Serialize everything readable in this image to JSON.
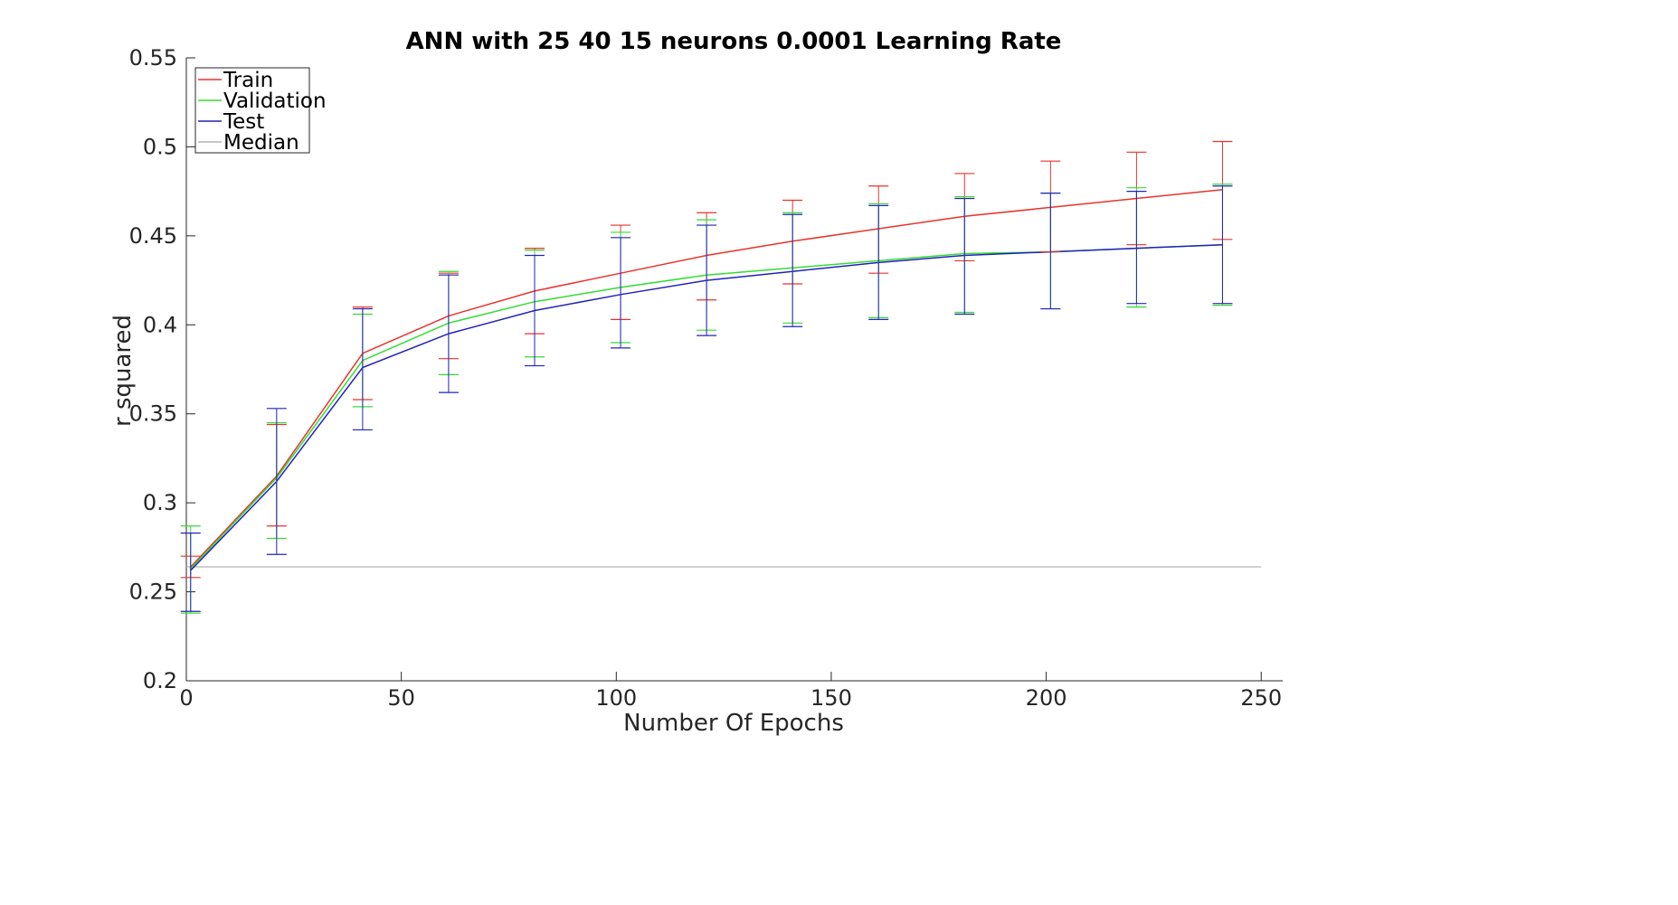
{
  "chart_data": {
    "type": "line",
    "title": "ANN with 25  40  15 neurons 0.0001 Learning Rate",
    "xlabel": "Number Of Epochs",
    "ylabel": "r squared",
    "xlim": [
      0,
      255
    ],
    "ylim": [
      0.2,
      0.55
    ],
    "xticks": [
      0,
      50,
      100,
      150,
      200,
      250
    ],
    "xtick_labels": [
      "0",
      "50",
      "100",
      "150",
      "200",
      "250"
    ],
    "yticks": [
      0.2,
      0.25,
      0.3,
      0.35,
      0.4,
      0.45,
      0.5,
      0.55
    ],
    "ytick_labels": [
      "0.2",
      "0.25",
      "0.3",
      "0.35",
      "0.4",
      "0.45",
      "0.5",
      "0.55"
    ],
    "grid": false,
    "legend_position": "top-left",
    "x": [
      1,
      21,
      41,
      61,
      81,
      101,
      121,
      141,
      161,
      181,
      201,
      221,
      241
    ],
    "series": [
      {
        "name": "Train",
        "color": "#e8332b",
        "values": [
          0.264,
          0.315,
          0.384,
          0.405,
          0.419,
          0.429,
          0.439,
          0.447,
          0.454,
          0.461,
          0.466,
          0.471,
          0.476
        ],
        "err_low": [
          0.258,
          0.287,
          0.358,
          0.381,
          0.395,
          0.403,
          0.414,
          0.423,
          0.429,
          0.436,
          0.441,
          0.445,
          0.448
        ],
        "err_high": [
          0.27,
          0.344,
          0.41,
          0.429,
          0.443,
          0.456,
          0.463,
          0.47,
          0.478,
          0.485,
          0.492,
          0.497,
          0.503
        ]
      },
      {
        "name": "Validation",
        "color": "#33dd33",
        "values": [
          0.263,
          0.314,
          0.38,
          0.401,
          0.413,
          0.421,
          0.428,
          0.432,
          0.436,
          0.44,
          0.441,
          0.443,
          0.445
        ],
        "err_low": [
          0.238,
          0.28,
          0.354,
          0.372,
          0.382,
          0.39,
          0.397,
          0.401,
          0.404,
          0.407,
          0.409,
          0.41,
          0.411
        ],
        "err_high": [
          0.287,
          0.345,
          0.406,
          0.43,
          0.442,
          0.452,
          0.459,
          0.463,
          0.468,
          0.472,
          0.474,
          0.477,
          0.479
        ]
      },
      {
        "name": "Test",
        "color": "#2222bb",
        "values": [
          0.262,
          0.312,
          0.376,
          0.395,
          0.408,
          0.417,
          0.425,
          0.43,
          0.435,
          0.439,
          0.441,
          0.443,
          0.445
        ],
        "err_low": [
          0.239,
          0.271,
          0.341,
          0.362,
          0.377,
          0.387,
          0.394,
          0.399,
          0.403,
          0.406,
          0.409,
          0.412,
          0.412
        ],
        "err_high": [
          0.283,
          0.353,
          0.409,
          0.428,
          0.439,
          0.449,
          0.456,
          0.462,
          0.467,
          0.471,
          0.474,
          0.475,
          0.478
        ]
      }
    ],
    "reference_lines": [
      {
        "name": "Median",
        "color": "#b3b3b3",
        "y": 0.264,
        "x_range": [
          0,
          250
        ]
      }
    ],
    "legend": [
      "Train",
      "Validation",
      "Test",
      "Median"
    ]
  }
}
